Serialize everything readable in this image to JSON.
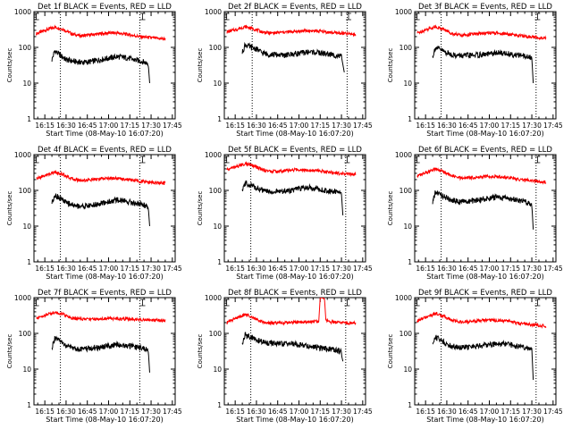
{
  "colors": {
    "events": "#000000",
    "lld": "#ff0000",
    "background": "#ffffff",
    "axes": "#000000"
  },
  "chart_data": [
    {
      "type": "line",
      "title": "Det 1f BLACK = Events, RED = LLD",
      "ylabel": "Counts/sec",
      "xlabel": "Start Time (08-May-10 16:07:20)",
      "yscale": "log",
      "ylim": [
        1,
        1000
      ],
      "xticks": [
        "16:15",
        "16:30",
        "16:45",
        "17:00",
        "17:15",
        "17:30",
        "17:45"
      ],
      "yticks": [
        "1",
        "10",
        "100",
        "1000"
      ],
      "vlines": [
        "16:26",
        "17:22"
      ],
      "grid": false,
      "gap_markers": [
        "16:09",
        "17:24"
      ],
      "series": [
        {
          "color": "#ff0000",
          "x": [
            "16:09",
            "16:15",
            "16:22",
            "16:28",
            "16:34",
            "16:40",
            "16:46",
            "16:52",
            "16:58",
            "17:04",
            "17:10",
            "17:16",
            "17:22",
            "17:28",
            "17:34",
            "17:40"
          ],
          "values": [
            240,
            300,
            370,
            320,
            240,
            210,
            220,
            235,
            250,
            255,
            240,
            220,
            200,
            190,
            180,
            170
          ]
        },
        {
          "color": "#000000",
          "x": [
            "16:20",
            "16:22",
            "16:26",
            "16:30",
            "16:36",
            "16:42",
            "16:48",
            "16:54",
            "17:00",
            "17:06",
            "17:12",
            "17:18",
            "17:24",
            "17:28",
            "17:29"
          ],
          "values": [
            45,
            80,
            60,
            45,
            40,
            38,
            40,
            45,
            50,
            55,
            52,
            45,
            40,
            35,
            10
          ]
        }
      ]
    },
    {
      "type": "line",
      "title": "Det 2f BLACK = Events, RED = LLD",
      "ylabel": "Counts/sec",
      "xlabel": "Start Time (08-May-10 16:07:20)",
      "yscale": "log",
      "ylim": [
        1,
        1000
      ],
      "xticks": [
        "16:15",
        "16:30",
        "16:45",
        "17:00",
        "17:15",
        "17:30",
        "17:45"
      ],
      "yticks": [
        "1",
        "10",
        "100",
        "1000"
      ],
      "vlines": [
        "16:27",
        "17:34"
      ],
      "grid": false,
      "gap_markers": [
        "16:09",
        "17:35"
      ],
      "series": [
        {
          "color": "#ff0000",
          "x": [
            "16:09",
            "16:15",
            "16:22",
            "16:28",
            "16:34",
            "16:40",
            "16:46",
            "16:52",
            "16:58",
            "17:04",
            "17:10",
            "17:16",
            "17:22",
            "17:28",
            "17:34",
            "17:40"
          ],
          "values": [
            270,
            310,
            380,
            330,
            270,
            250,
            260,
            270,
            280,
            290,
            290,
            280,
            260,
            250,
            240,
            230
          ]
        },
        {
          "color": "#000000",
          "x": [
            "16:20",
            "16:22",
            "16:26",
            "16:30",
            "16:34",
            "16:38",
            "16:44",
            "16:50",
            "16:56",
            "17:02",
            "17:08",
            "17:14",
            "17:20",
            "17:26",
            "17:30",
            "17:32"
          ],
          "values": [
            70,
            120,
            100,
            90,
            70,
            65,
            62,
            60,
            65,
            70,
            75,
            70,
            65,
            60,
            55,
            20
          ]
        }
      ]
    },
    {
      "type": "line",
      "title": "Det 3f BLACK = Events, RED = LLD",
      "ylabel": "Counts/sec",
      "xlabel": "Start Time (08-May-10 16:07:20)",
      "yscale": "log",
      "ylim": [
        1,
        1000
      ],
      "xticks": [
        "16:15",
        "16:30",
        "16:45",
        "17:00",
        "17:15",
        "17:30",
        "17:45"
      ],
      "yticks": [
        "1",
        "10",
        "100",
        "1000"
      ],
      "vlines": [
        "16:26",
        "17:33"
      ],
      "grid": false,
      "gap_markers": [
        "16:09",
        "17:34"
      ],
      "series": [
        {
          "color": "#ff0000",
          "x": [
            "16:09",
            "16:15",
            "16:22",
            "16:28",
            "16:34",
            "16:40",
            "16:46",
            "16:52",
            "16:58",
            "17:04",
            "17:10",
            "17:16",
            "17:22",
            "17:28",
            "17:34",
            "17:40"
          ],
          "values": [
            250,
            310,
            380,
            320,
            240,
            220,
            230,
            240,
            250,
            250,
            240,
            230,
            210,
            200,
            190,
            180
          ]
        },
        {
          "color": "#000000",
          "x": [
            "16:20",
            "16:22",
            "16:26",
            "16:30",
            "16:36",
            "16:42",
            "16:48",
            "16:54",
            "17:00",
            "17:06",
            "17:12",
            "17:18",
            "17:24",
            "17:30",
            "17:31"
          ],
          "values": [
            55,
            100,
            85,
            70,
            60,
            58,
            60,
            62,
            65,
            70,
            68,
            62,
            58,
            50,
            10
          ]
        }
      ]
    },
    {
      "type": "line",
      "title": "Det 4f BLACK = Events, RED = LLD",
      "ylabel": "Counts/sec",
      "xlabel": "Start Time (08-May-10 16:07:20)",
      "yscale": "log",
      "ylim": [
        1,
        1000
      ],
      "xticks": [
        "16:15",
        "16:30",
        "16:45",
        "17:00",
        "17:15",
        "17:30",
        "17:45"
      ],
      "yticks": [
        "1",
        "10",
        "100",
        "1000"
      ],
      "vlines": [
        "16:26",
        "17:22"
      ],
      "grid": false,
      "gap_markers": [
        "16:09",
        "17:24"
      ],
      "series": [
        {
          "color": "#ff0000",
          "x": [
            "16:09",
            "16:15",
            "16:22",
            "16:28",
            "16:34",
            "16:40",
            "16:46",
            "16:52",
            "16:58",
            "17:04",
            "17:10",
            "17:16",
            "17:22",
            "17:28",
            "17:34",
            "17:40"
          ],
          "values": [
            210,
            260,
            320,
            280,
            210,
            190,
            195,
            205,
            215,
            220,
            210,
            195,
            180,
            170,
            165,
            160
          ]
        },
        {
          "color": "#000000",
          "x": [
            "16:20",
            "16:22",
            "16:26",
            "16:30",
            "16:36",
            "16:42",
            "16:48",
            "16:54",
            "17:00",
            "17:06",
            "17:12",
            "17:18",
            "17:24",
            "17:28",
            "17:29"
          ],
          "values": [
            45,
            75,
            60,
            45,
            38,
            36,
            38,
            42,
            48,
            54,
            50,
            44,
            40,
            35,
            10
          ]
        }
      ]
    },
    {
      "type": "line",
      "title": "Det 5f BLACK = Events, RED = LLD",
      "ylabel": "Counts/sec",
      "xlabel": "Start Time (08-May-10 16:07:20)",
      "yscale": "log",
      "ylim": [
        1,
        1000
      ],
      "xticks": [
        "16:15",
        "16:30",
        "16:45",
        "17:00",
        "17:15",
        "17:30",
        "17:45"
      ],
      "yticks": [
        "1",
        "10",
        "100",
        "1000"
      ],
      "vlines": [
        "16:26",
        "17:33"
      ],
      "grid": false,
      "gap_markers": [
        "16:09",
        "17:34"
      ],
      "series": [
        {
          "color": "#ff0000",
          "x": [
            "16:09",
            "16:15",
            "16:22",
            "16:28",
            "16:34",
            "16:40",
            "16:46",
            "16:52",
            "16:58",
            "17:04",
            "17:10",
            "17:16",
            "17:22",
            "17:28",
            "17:34",
            "17:40"
          ],
          "values": [
            380,
            450,
            560,
            480,
            380,
            340,
            340,
            360,
            380,
            380,
            370,
            350,
            320,
            300,
            290,
            280
          ]
        },
        {
          "color": "#000000",
          "x": [
            "16:20",
            "16:22",
            "16:26",
            "16:30",
            "16:36",
            "16:42",
            "16:48",
            "16:54",
            "17:00",
            "17:06",
            "17:12",
            "17:18",
            "17:24",
            "17:28",
            "17:30",
            "17:31"
          ],
          "values": [
            90,
            160,
            140,
            120,
            95,
            90,
            95,
            100,
            110,
            120,
            115,
            100,
            95,
            90,
            80,
            20
          ]
        }
      ]
    },
    {
      "type": "line",
      "title": "Det 6f BLACK = Events, RED = LLD",
      "ylabel": "Counts/sec",
      "xlabel": "Start Time (08-May-10 16:07:20)",
      "yscale": "log",
      "ylim": [
        1,
        1000
      ],
      "xticks": [
        "16:15",
        "16:30",
        "16:45",
        "17:00",
        "17:15",
        "17:30",
        "17:45"
      ],
      "yticks": [
        "1",
        "10",
        "100",
        "1000"
      ],
      "vlines": [
        "16:26",
        "17:33"
      ],
      "grid": false,
      "gap_markers": [
        "16:09",
        "17:34"
      ],
      "series": [
        {
          "color": "#ff0000",
          "x": [
            "16:09",
            "16:15",
            "16:22",
            "16:28",
            "16:34",
            "16:40",
            "16:46",
            "16:52",
            "16:58",
            "17:04",
            "17:10",
            "17:16",
            "17:22",
            "17:28",
            "17:34",
            "17:40"
          ],
          "values": [
            250,
            310,
            390,
            330,
            250,
            220,
            225,
            235,
            245,
            245,
            235,
            220,
            200,
            190,
            180,
            170
          ]
        },
        {
          "color": "#000000",
          "x": [
            "16:20",
            "16:22",
            "16:26",
            "16:30",
            "16:36",
            "16:42",
            "16:48",
            "16:54",
            "17:00",
            "17:06",
            "17:12",
            "17:18",
            "17:24",
            "17:30",
            "17:31"
          ],
          "values": [
            45,
            90,
            75,
            60,
            50,
            48,
            50,
            55,
            60,
            65,
            60,
            55,
            50,
            40,
            8
          ]
        }
      ]
    },
    {
      "type": "line",
      "title": "Det 7f BLACK = Events, RED = LLD",
      "ylabel": "Counts/sec",
      "xlabel": "Start Time (08-May-10 16:07:20)",
      "yscale": "log",
      "ylim": [
        1,
        1000
      ],
      "xticks": [
        "16:15",
        "16:30",
        "16:45",
        "17:00",
        "17:15",
        "17:30",
        "17:45"
      ],
      "yticks": [
        "1",
        "10",
        "100",
        "1000"
      ],
      "vlines": [
        "16:26",
        "17:22"
      ],
      "grid": false,
      "gap_markers": [
        "16:09",
        "17:24"
      ],
      "series": [
        {
          "color": "#ff0000",
          "x": [
            "16:09",
            "16:15",
            "16:22",
            "16:28",
            "16:34",
            "16:40",
            "16:46",
            "16:52",
            "16:58",
            "17:04",
            "17:10",
            "17:16",
            "17:22",
            "17:28",
            "17:34",
            "17:40"
          ],
          "values": [
            260,
            320,
            390,
            340,
            270,
            250,
            250,
            255,
            260,
            260,
            255,
            250,
            245,
            240,
            235,
            230
          ]
        },
        {
          "color": "#000000",
          "x": [
            "16:20",
            "16:22",
            "16:26",
            "16:30",
            "16:36",
            "16:42",
            "16:48",
            "16:54",
            "17:00",
            "17:06",
            "17:12",
            "17:18",
            "17:24",
            "17:28",
            "17:29"
          ],
          "values": [
            40,
            70,
            60,
            45,
            38,
            36,
            38,
            40,
            45,
            48,
            46,
            42,
            38,
            35,
            8
          ]
        }
      ]
    },
    {
      "type": "line",
      "title": "Det 8f BLACK = Events, RED = LLD",
      "ylabel": "Counts/sec",
      "xlabel": "Start Time (08-May-10 16:07:20)",
      "yscale": "log",
      "ylim": [
        1,
        1000
      ],
      "xticks": [
        "16:15",
        "16:30",
        "16:45",
        "17:00",
        "17:15",
        "17:30",
        "17:45"
      ],
      "yticks": [
        "1",
        "10",
        "100",
        "1000"
      ],
      "vlines": [
        "16:26",
        "17:33"
      ],
      "grid": false,
      "gap_markers": [
        "16:09",
        "17:34"
      ],
      "series": [
        {
          "color": "#ff0000",
          "x": [
            "16:09",
            "16:15",
            "16:22",
            "16:28",
            "16:34",
            "16:40",
            "16:46",
            "16:52",
            "16:58",
            "17:04",
            "17:10",
            "17:14",
            "17:15",
            "17:18",
            "17:19",
            "17:22",
            "17:28",
            "17:34",
            "17:40"
          ],
          "values": [
            200,
            260,
            340,
            280,
            210,
            190,
            195,
            200,
            205,
            210,
            215,
            220,
            1000,
            1000,
            230,
            210,
            200,
            195,
            190
          ]
        },
        {
          "color": "#000000",
          "x": [
            "16:20",
            "16:22",
            "16:26",
            "16:30",
            "16:36",
            "16:42",
            "16:48",
            "16:54",
            "17:00",
            "17:06",
            "17:12",
            "17:18",
            "17:24",
            "17:30",
            "17:31"
          ],
          "values": [
            50,
            90,
            80,
            65,
            55,
            52,
            50,
            52,
            48,
            45,
            40,
            38,
            35,
            30,
            15
          ]
        }
      ]
    },
    {
      "type": "line",
      "title": "Det 9f BLACK = Events, RED = LLD",
      "ylabel": "Counts/sec",
      "xlabel": "Start Time (08-May-10 16:07:20)",
      "yscale": "log",
      "ylim": [
        1,
        1000
      ],
      "xticks": [
        "16:15",
        "16:30",
        "16:45",
        "17:00",
        "17:15",
        "17:30",
        "17:45"
      ],
      "yticks": [
        "1",
        "10",
        "100",
        "1000"
      ],
      "vlines": [
        "16:26",
        "17:33"
      ],
      "grid": false,
      "gap_markers": [
        "16:09",
        "17:34"
      ],
      "series": [
        {
          "color": "#ff0000",
          "x": [
            "16:09",
            "16:15",
            "16:22",
            "16:28",
            "16:34",
            "16:40",
            "16:46",
            "16:52",
            "16:58",
            "17:04",
            "17:10",
            "17:16",
            "17:22",
            "17:28",
            "17:34",
            "17:40"
          ],
          "values": [
            220,
            280,
            360,
            300,
            230,
            210,
            215,
            225,
            235,
            235,
            225,
            210,
            190,
            180,
            170,
            160
          ]
        },
        {
          "color": "#000000",
          "x": [
            "16:20",
            "16:22",
            "16:26",
            "16:30",
            "16:36",
            "16:42",
            "16:48",
            "16:54",
            "17:00",
            "17:06",
            "17:12",
            "17:18",
            "17:24",
            "17:30",
            "17:31"
          ],
          "values": [
            50,
            80,
            65,
            50,
            42,
            40,
            42,
            45,
            50,
            52,
            50,
            45,
            40,
            35,
            5
          ]
        }
      ]
    }
  ]
}
